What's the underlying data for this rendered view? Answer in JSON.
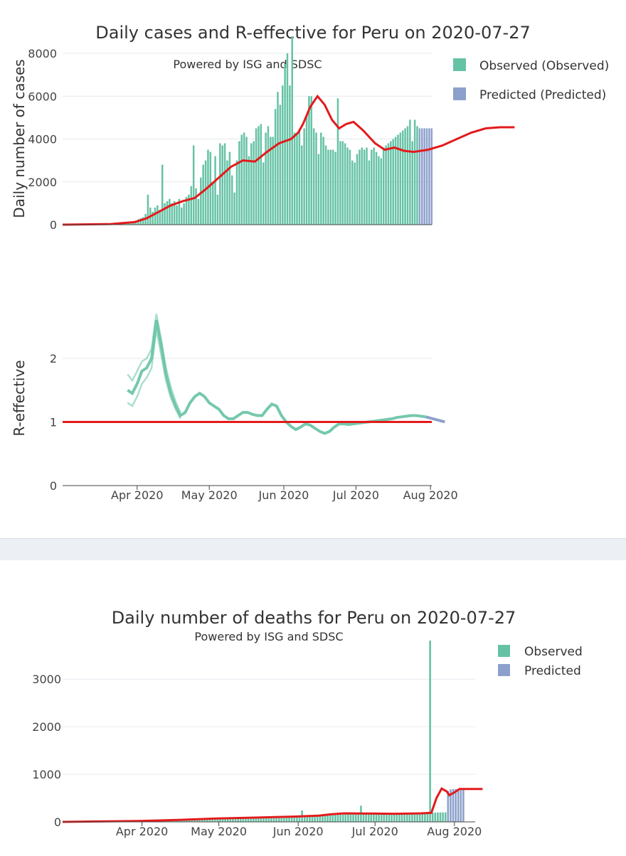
{
  "chart_data": [
    {
      "type": "bar",
      "title": "Daily cases and R-effective for Peru on 2020-07-27",
      "subtitle": "Powered by ISG and SDSC",
      "ylabel": "Daily number of cases",
      "ylim": [
        0,
        8500
      ],
      "yticks": [
        "0",
        "2000",
        "4000",
        "6000",
        "8000"
      ],
      "ytick_values": [
        0,
        2000,
        4000,
        6000,
        8000
      ],
      "legend": [
        {
          "label": "Observed (Observed)",
          "color": "#66c2a5"
        },
        {
          "label": "Predicted (Predicted)",
          "color": "#8da0cb"
        }
      ],
      "x_start": "2020-03-01",
      "observed_daily": [
        0,
        0,
        0,
        0,
        0,
        0,
        0,
        0,
        0,
        0,
        0,
        0,
        0,
        0,
        0,
        0,
        10,
        15,
        20,
        30,
        35,
        40,
        50,
        60,
        70,
        80,
        100,
        120,
        140,
        160,
        200,
        250,
        300,
        350,
        500,
        1400,
        800,
        600,
        800,
        900,
        700,
        2800,
        1000,
        1100,
        1200,
        1000,
        1100,
        900,
        1200,
        800,
        1000,
        1300,
        1400,
        1800,
        3700,
        1700,
        1200,
        2200,
        2800,
        3000,
        3500,
        3400,
        2000,
        3200,
        1400,
        3800,
        3700,
        3800,
        3000,
        3400,
        2300,
        1500,
        3000,
        3900,
        4200,
        4300,
        4100,
        3200,
        3800,
        3900,
        4500,
        4600,
        4700,
        2900,
        4300,
        4600,
        4100,
        4100,
        5400,
        6200,
        5600,
        6500,
        7500,
        8000,
        6500,
        8800,
        4300,
        4200,
        4400,
        3700,
        4500,
        5100,
        6000,
        6000,
        4500,
        4300,
        3300,
        4300,
        4100,
        3700,
        3500,
        3500,
        3500,
        3400,
        5900,
        3900,
        3900,
        3800,
        3600,
        3500,
        3000,
        2900,
        3300,
        3500,
        3600,
        3500,
        3600,
        3000,
        3500,
        3600,
        3400,
        3200,
        3100,
        3600,
        3700,
        3800,
        3900,
        4000,
        4100,
        4200,
        4300,
        4400,
        4500,
        4600,
        4900,
        3900,
        4900,
        4600
      ],
      "predicted_daily": [
        4500,
        4500,
        4500,
        4500,
        4500,
        4500
      ],
      "smoothed_cases": [
        [
          0,
          0
        ],
        [
          20,
          30
        ],
        [
          30,
          120
        ],
        [
          35,
          300
        ],
        [
          40,
          600
        ],
        [
          45,
          900
        ],
        [
          50,
          1100
        ],
        [
          55,
          1250
        ],
        [
          60,
          1700
        ],
        [
          65,
          2200
        ],
        [
          70,
          2700
        ],
        [
          75,
          3000
        ],
        [
          80,
          2950
        ],
        [
          85,
          3400
        ],
        [
          90,
          3800
        ],
        [
          95,
          4000
        ],
        [
          98,
          4300
        ],
        [
          100,
          4700
        ],
        [
          103,
          5500
        ],
        [
          106,
          6000
        ],
        [
          109,
          5600
        ],
        [
          112,
          4900
        ],
        [
          115,
          4500
        ],
        [
          118,
          4700
        ],
        [
          121,
          4800
        ],
        [
          125,
          4400
        ],
        [
          130,
          3800
        ],
        [
          134,
          3500
        ],
        [
          138,
          3600
        ],
        [
          142,
          3450
        ],
        [
          146,
          3400
        ],
        [
          152,
          3500
        ],
        [
          158,
          3700
        ],
        [
          164,
          4000
        ],
        [
          170,
          4300
        ],
        [
          176,
          4500
        ],
        [
          182,
          4550
        ],
        [
          188,
          4550
        ]
      ],
      "reff": {
        "ylabel": "R-effective",
        "ylim": [
          0,
          2.9
        ],
        "yticks": [
          "0",
          "1",
          "2"
        ],
        "ytick_values": [
          0,
          1,
          2
        ],
        "xticks": [
          "Apr 2020",
          "May 2020",
          "Jun 2020",
          "Jul 2020",
          "Aug 2020"
        ],
        "xtick_days": [
          31,
          61,
          92,
          122,
          153
        ],
        "observed": [
          [
            27,
            1.5
          ],
          [
            29,
            1.45
          ],
          [
            31,
            1.6
          ],
          [
            33,
            1.8
          ],
          [
            35,
            1.85
          ],
          [
            37,
            2.0
          ],
          [
            39,
            2.6
          ],
          [
            41,
            2.2
          ],
          [
            43,
            1.75
          ],
          [
            45,
            1.45
          ],
          [
            47,
            1.25
          ],
          [
            49,
            1.1
          ],
          [
            51,
            1.15
          ],
          [
            53,
            1.3
          ],
          [
            55,
            1.4
          ],
          [
            57,
            1.45
          ],
          [
            59,
            1.4
          ],
          [
            61,
            1.3
          ],
          [
            63,
            1.25
          ],
          [
            65,
            1.2
          ],
          [
            67,
            1.1
          ],
          [
            69,
            1.05
          ],
          [
            71,
            1.05
          ],
          [
            73,
            1.1
          ],
          [
            75,
            1.15
          ],
          [
            77,
            1.15
          ],
          [
            79,
            1.12
          ],
          [
            81,
            1.1
          ],
          [
            83,
            1.1
          ],
          [
            85,
            1.2
          ],
          [
            87,
            1.28
          ],
          [
            89,
            1.25
          ],
          [
            91,
            1.1
          ],
          [
            93,
            1.0
          ],
          [
            95,
            0.93
          ],
          [
            97,
            0.88
          ],
          [
            99,
            0.92
          ],
          [
            101,
            0.97
          ],
          [
            103,
            0.95
          ],
          [
            105,
            0.9
          ],
          [
            107,
            0.85
          ],
          [
            109,
            0.82
          ],
          [
            111,
            0.85
          ],
          [
            113,
            0.92
          ],
          [
            115,
            0.97
          ],
          [
            117,
            0.97
          ],
          [
            119,
            0.96
          ],
          [
            121,
            0.97
          ],
          [
            123,
            0.98
          ],
          [
            125,
            0.99
          ],
          [
            127,
            1.0
          ],
          [
            129,
            1.01
          ],
          [
            131,
            1.02
          ],
          [
            133,
            1.03
          ],
          [
            135,
            1.04
          ],
          [
            137,
            1.05
          ],
          [
            139,
            1.07
          ],
          [
            141,
            1.08
          ],
          [
            143,
            1.09
          ],
          [
            145,
            1.1
          ],
          [
            147,
            1.1
          ],
          [
            149,
            1.09
          ],
          [
            151,
            1.08
          ]
        ],
        "observed_upper": [
          [
            27,
            1.75
          ],
          [
            29,
            1.65
          ],
          [
            31,
            1.8
          ],
          [
            33,
            1.95
          ],
          [
            35,
            2.0
          ],
          [
            37,
            2.15
          ],
          [
            39,
            2.7
          ],
          [
            41,
            2.3
          ],
          [
            43,
            1.85
          ],
          [
            45,
            1.55
          ],
          [
            47,
            1.32
          ],
          [
            49,
            1.15
          ]
        ],
        "observed_lower": [
          [
            27,
            1.3
          ],
          [
            29,
            1.25
          ],
          [
            31,
            1.4
          ],
          [
            33,
            1.6
          ],
          [
            35,
            1.7
          ],
          [
            37,
            1.85
          ],
          [
            39,
            2.45
          ],
          [
            41,
            2.05
          ],
          [
            43,
            1.65
          ],
          [
            45,
            1.38
          ],
          [
            47,
            1.2
          ],
          [
            49,
            1.05
          ]
        ],
        "predicted": [
          [
            151,
            1.08
          ],
          [
            154,
            1.05
          ],
          [
            157,
            1.02
          ],
          [
            159,
            1.0
          ]
        ],
        "threshold": 1
      }
    },
    {
      "type": "bar",
      "title": "Daily number of deaths for Peru on 2020-07-27",
      "subtitle": "Powered by ISG and SDSC",
      "ylim": [
        0,
        3900
      ],
      "yticks": [
        "0",
        "1000",
        "2000",
        "3000"
      ],
      "ytick_values": [
        0,
        1000,
        2000,
        3000
      ],
      "xticks": [
        "Apr 2020",
        "May 2020",
        "Jun 2020",
        "Jul 2020",
        "Aug 2020"
      ],
      "xtick_days": [
        31,
        61,
        92,
        122,
        153
      ],
      "legend": [
        {
          "label": "Observed",
          "color": "#66c2a5"
        },
        {
          "label": "Predicted",
          "color": "#8da0cb"
        }
      ],
      "x_start": "2020-03-01",
      "observed_spikes": [
        [
          93,
          240
        ],
        [
          116,
          340
        ],
        [
          143,
          3810
        ]
      ],
      "observed_trend": [
        [
          15,
          0
        ],
        [
          30,
          20
        ],
        [
          45,
          40
        ],
        [
          60,
          70
        ],
        [
          75,
          95
        ],
        [
          90,
          120
        ],
        [
          105,
          150
        ],
        [
          120,
          170
        ],
        [
          140,
          190
        ],
        [
          148,
          200
        ]
      ],
      "predicted_daily": [
        650,
        680,
        690,
        690,
        690,
        690,
        690
      ],
      "smoothed_deaths": [
        [
          0,
          0
        ],
        [
          30,
          20
        ],
        [
          45,
          40
        ],
        [
          60,
          70
        ],
        [
          75,
          90
        ],
        [
          90,
          110
        ],
        [
          100,
          130
        ],
        [
          105,
          160
        ],
        [
          110,
          180
        ],
        [
          120,
          175
        ],
        [
          130,
          170
        ],
        [
          140,
          180
        ],
        [
          144,
          190
        ],
        [
          146,
          500
        ],
        [
          148,
          700
        ],
        [
          150,
          640
        ],
        [
          151,
          560
        ],
        [
          153,
          620
        ],
        [
          155,
          690
        ],
        [
          160,
          690
        ],
        [
          164,
          690
        ]
      ]
    }
  ]
}
